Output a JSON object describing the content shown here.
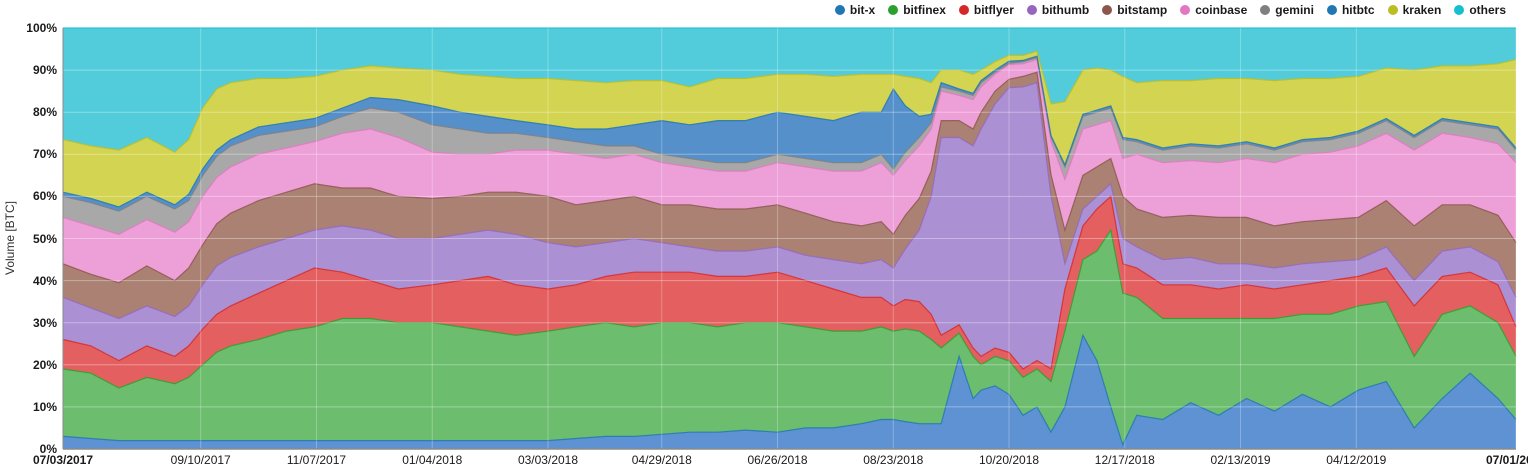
{
  "chart_data": {
    "type": "area",
    "stacked": true,
    "normalized_percent": true,
    "title": "",
    "xlabel": "",
    "ylabel": "Volume [BTC]",
    "ylim": [
      0,
      100
    ],
    "grid": true,
    "legend_position": "top-right",
    "y_ticks": [
      {
        "label": "0%",
        "value": 0
      },
      {
        "label": "10%",
        "value": 10
      },
      {
        "label": "20%",
        "value": 20
      },
      {
        "label": "30%",
        "value": 30
      },
      {
        "label": "40%",
        "value": 40
      },
      {
        "label": "50%",
        "value": 50
      },
      {
        "label": "60%",
        "value": 60
      },
      {
        "label": "70%",
        "value": 70
      },
      {
        "label": "80%",
        "value": 80
      },
      {
        "label": "90%",
        "value": 90
      },
      {
        "label": "100%",
        "value": 100
      }
    ],
    "x_ticks": [
      {
        "label": "07/03/2017",
        "date": "2017-07-03",
        "bold": true
      },
      {
        "label": "09/10/2017",
        "date": "2017-09-10",
        "bold": false
      },
      {
        "label": "11/07/2017",
        "date": "2017-11-07",
        "bold": false
      },
      {
        "label": "01/04/2018",
        "date": "2018-01-04",
        "bold": false
      },
      {
        "label": "03/03/2018",
        "date": "2018-03-03",
        "bold": false
      },
      {
        "label": "04/29/2018",
        "date": "2018-04-29",
        "bold": false
      },
      {
        "label": "06/26/2018",
        "date": "2018-06-26",
        "bold": false
      },
      {
        "label": "08/23/2018",
        "date": "2018-08-23",
        "bold": false
      },
      {
        "label": "10/20/2018",
        "date": "2018-10-20",
        "bold": false
      },
      {
        "label": "12/17/2018",
        "date": "2018-12-17",
        "bold": false
      },
      {
        "label": "02/13/2019",
        "date": "2019-02-13",
        "bold": false
      },
      {
        "label": "04/12/2019",
        "date": "2019-04-12",
        "bold": false
      },
      {
        "label": "07/01/2019",
        "date": "2019-07-01",
        "bold": true
      }
    ],
    "dates": [
      "2017-07-03",
      "2017-07-17",
      "2017-07-31",
      "2017-08-14",
      "2017-08-28",
      "2017-09-04",
      "2017-09-11",
      "2017-09-18",
      "2017-09-25",
      "2017-10-09",
      "2017-10-23",
      "2017-11-06",
      "2017-11-20",
      "2017-12-04",
      "2017-12-18",
      "2018-01-04",
      "2018-01-18",
      "2018-02-01",
      "2018-02-15",
      "2018-03-03",
      "2018-03-17",
      "2018-04-01",
      "2018-04-15",
      "2018-04-29",
      "2018-05-13",
      "2018-05-27",
      "2018-06-10",
      "2018-06-26",
      "2018-07-10",
      "2018-07-24",
      "2018-08-07",
      "2018-08-17",
      "2018-08-23",
      "2018-08-29",
      "2018-09-05",
      "2018-09-11",
      "2018-09-16",
      "2018-09-25",
      "2018-10-02",
      "2018-10-06",
      "2018-10-13",
      "2018-10-20",
      "2018-10-27",
      "2018-11-03",
      "2018-11-10",
      "2018-11-17",
      "2018-11-26",
      "2018-12-03",
      "2018-12-10",
      "2018-12-16",
      "2018-12-23",
      "2019-01-05",
      "2019-01-19",
      "2019-02-02",
      "2019-02-16",
      "2019-03-02",
      "2019-03-16",
      "2019-03-30",
      "2019-04-13",
      "2019-04-27",
      "2019-05-11",
      "2019-05-25",
      "2019-06-08",
      "2019-06-22",
      "2019-07-01"
    ],
    "series": [
      {
        "name": "bit-x",
        "color": "#1f77b4",
        "fill": "#5e92d2",
        "values": [
          3,
          2.5,
          2,
          2,
          2,
          2,
          2,
          2,
          2,
          2,
          2,
          2,
          2,
          2,
          2,
          2,
          2,
          2,
          2,
          2,
          2.5,
          3,
          3,
          3.5,
          4,
          4,
          4.5,
          4,
          5,
          5,
          6,
          7,
          7,
          6.5,
          6,
          6,
          6,
          22,
          12,
          14,
          15,
          13,
          8,
          10,
          4,
          10,
          27,
          21,
          10,
          1,
          8,
          7,
          11,
          8,
          12,
          9,
          13,
          10,
          14,
          16,
          5,
          12,
          18,
          12,
          7
        ]
      },
      {
        "name": "bitfinex",
        "color": "#2ca02c",
        "fill": "#6cbd6d",
        "values": [
          16,
          15.5,
          12.5,
          15,
          13.5,
          15,
          18,
          21,
          22.5,
          24,
          26,
          27,
          29,
          29,
          28,
          28,
          27,
          26,
          25,
          26,
          26.5,
          27,
          26,
          26.5,
          26,
          25,
          25.5,
          26,
          24,
          23,
          22,
          22,
          21,
          22,
          22,
          20,
          18,
          5.5,
          10,
          6,
          7,
          8,
          9,
          9,
          12,
          18,
          18,
          26,
          42,
          36,
          28,
          24,
          20,
          23,
          19,
          22,
          19,
          22,
          20,
          19,
          17,
          20,
          16,
          18,
          15
        ]
      },
      {
        "name": "bitflyer",
        "color": "#d62728",
        "fill": "#e46060",
        "values": [
          7,
          6.5,
          6.5,
          7.5,
          6.5,
          7.5,
          8.5,
          9,
          9.5,
          11,
          12,
          14,
          11,
          9,
          8,
          9,
          11,
          13,
          12,
          10,
          10,
          11,
          13,
          12,
          12,
          12,
          11,
          12,
          11,
          10,
          8,
          7,
          6,
          7,
          7,
          6,
          3,
          2,
          2,
          2,
          2,
          2,
          2,
          2,
          3,
          10,
          8,
          10,
          8,
          7,
          7,
          8,
          8,
          7,
          8,
          7,
          7,
          8,
          7,
          8,
          12,
          9,
          8,
          9,
          7
        ]
      },
      {
        "name": "bithumb",
        "color": "#9467bd",
        "fill": "#ab90d4",
        "values": [
          10,
          9,
          10,
          9.5,
          9.5,
          9.5,
          10.5,
          11.5,
          11.5,
          11,
          10,
          9,
          11,
          12,
          12,
          11,
          11,
          11,
          12,
          11,
          9,
          8,
          8,
          7,
          6,
          6,
          6,
          6,
          6,
          7,
          8,
          9,
          9,
          12,
          17,
          28,
          47,
          44.5,
          48,
          54,
          58,
          63,
          67,
          66,
          41,
          6,
          4,
          3,
          3,
          6,
          5,
          6,
          6.5,
          6,
          5,
          5,
          5,
          4.5,
          4,
          5,
          6,
          6,
          6,
          5.5,
          7
        ]
      },
      {
        "name": "bitstamp",
        "color": "#8c564b",
        "fill": "#ab8173",
        "values": [
          8,
          8,
          8.5,
          9.5,
          8.5,
          9,
          9.5,
          10,
          10.5,
          11,
          11,
          11,
          9,
          10,
          10,
          9.5,
          9,
          9,
          10,
          11,
          10,
          10,
          10,
          9,
          10,
          10,
          10,
          10,
          10,
          9,
          9,
          9,
          8,
          8,
          7.5,
          6,
          4,
          4,
          4,
          4,
          3,
          2,
          2.5,
          2.5,
          5,
          8,
          8,
          7,
          6,
          10,
          9,
          10,
          10,
          11,
          11,
          10,
          10,
          10,
          10,
          11,
          13,
          11,
          10,
          11,
          13
        ]
      },
      {
        "name": "coinbase",
        "color": "#e377c2",
        "fill": "#eda0d8",
        "values": [
          11,
          11.5,
          11.5,
          11,
          11.5,
          11,
          11.5,
          11,
          11,
          11,
          10.5,
          10,
          13,
          14,
          14,
          11,
          10,
          9,
          10,
          11,
          12,
          10,
          10,
          10,
          9,
          9,
          9,
          10,
          11,
          12,
          13,
          14,
          14,
          13,
          12.5,
          10,
          7,
          6,
          7,
          6,
          4,
          3.5,
          3,
          3,
          8,
          12,
          11,
          10,
          9,
          9,
          13,
          13,
          13,
          13,
          14,
          15,
          16,
          16,
          17,
          16,
          18,
          17,
          16,
          17,
          19
        ]
      },
      {
        "name": "gemini",
        "color": "#7f7f7f",
        "fill": "#a8a8a8",
        "values": [
          5,
          5.5,
          5.5,
          5.5,
          5.5,
          5,
          5,
          5,
          5,
          4.5,
          4,
          3.5,
          4,
          5,
          6,
          6.5,
          6,
          5,
          4,
          3,
          3,
          3,
          2,
          2,
          2,
          2,
          2,
          2,
          2,
          2,
          2,
          2,
          1.5,
          2,
          2,
          1.5,
          1,
          1,
          1,
          1,
          0.5,
          0.3,
          0.5,
          0.5,
          1,
          3,
          3,
          3,
          3,
          4.5,
          3,
          3,
          3.5,
          3.5,
          3.5,
          3,
          3,
          3,
          3,
          3,
          3,
          3,
          3,
          3.5,
          3
        ]
      },
      {
        "name": "hitbtc",
        "color": "#1f77b4",
        "fill": "#5590ca",
        "values": [
          1,
          1,
          1,
          1,
          1,
          1.5,
          1.5,
          1.5,
          1.5,
          2,
          2,
          2,
          2,
          2.5,
          3,
          4.5,
          4,
          4,
          3,
          3,
          3,
          4,
          5,
          8,
          8,
          10,
          10,
          10,
          10,
          10,
          12,
          10,
          19,
          11,
          5,
          2,
          1,
          0.5,
          0.5,
          0.5,
          0.5,
          0.5,
          0.3,
          0.3,
          0.3,
          0.5,
          0.5,
          0.5,
          0.5,
          0.5,
          0.5,
          0.5,
          0.5,
          0.5,
          0.5,
          0.5,
          0.5,
          0.5,
          0.5,
          0.5,
          0.5,
          0.5,
          0.5,
          0.5,
          0.5
        ]
      },
      {
        "name": "kraken",
        "color": "#bcbd22",
        "fill": "#d3d452",
        "values": [
          12.5,
          12.5,
          13.5,
          13,
          12.5,
          13,
          14.5,
          14.5,
          13.5,
          11.5,
          10.5,
          10,
          9,
          7.5,
          7.5,
          8.5,
          9,
          9.5,
          10,
          11,
          11.5,
          11,
          10.5,
          9.5,
          9,
          10,
          10,
          9,
          10,
          10.5,
          9,
          9,
          3.5,
          7,
          9,
          7.5,
          3,
          4.5,
          4.5,
          2.5,
          2,
          1.4,
          1.2,
          1.2,
          7.5,
          15,
          10.5,
          10,
          8.5,
          14.5,
          13.5,
          16,
          15,
          16,
          15,
          16,
          14.5,
          14,
          13,
          12,
          15.5,
          12.5,
          13.5,
          15,
          21
        ]
      },
      {
        "name": "others",
        "color": "#17becf",
        "fill": "#52ccdb",
        "values": [
          26.5,
          28,
          29,
          26,
          29.5,
          26.5,
          19,
          14.5,
          13,
          12,
          12,
          11.5,
          10,
          9,
          9.5,
          10,
          11,
          11.5,
          12,
          12,
          12.5,
          13,
          12.5,
          12.5,
          14,
          12,
          12,
          11,
          11,
          11.5,
          11,
          11,
          11,
          11.5,
          12,
          13,
          10,
          10,
          11,
          10,
          8,
          6.5,
          6.5,
          5.5,
          18,
          17.5,
          10,
          9.5,
          10,
          11.5,
          13,
          12.5,
          12.5,
          12,
          12,
          12.5,
          12,
          12,
          11.5,
          9.5,
          10,
          9,
          9,
          8.5,
          7.5
        ]
      }
    ]
  }
}
